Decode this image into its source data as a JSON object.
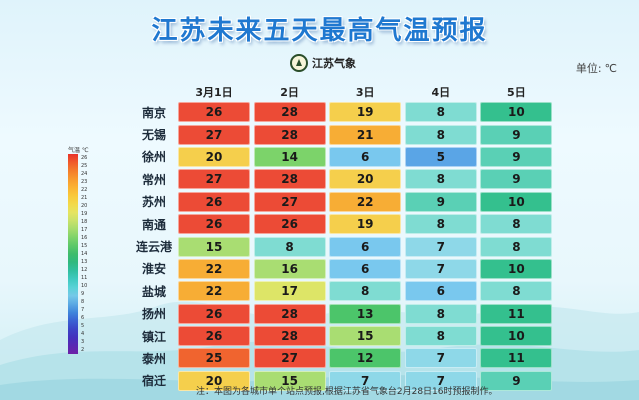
{
  "title": "江苏未来五天最高气温预报",
  "logo_text": "江苏气象",
  "unit_label": "单位:",
  "unit_symbol": "℃",
  "legend": {
    "header": "气温 ℃",
    "ticks": [
      "26",
      "25",
      "24",
      "23",
      "22",
      "21",
      "20",
      "19",
      "18",
      "17",
      "16",
      "15",
      "14",
      "13",
      "12",
      "11",
      "10",
      "9",
      "8",
      "7",
      "6",
      "5",
      "4",
      "3",
      "2"
    ],
    "colors": [
      "#e8322a",
      "#f05a2b",
      "#f47d2c",
      "#f89a2f",
      "#fbb233",
      "#f9c93a",
      "#f3d94a",
      "#e6e460",
      "#c9e26a",
      "#a6dc6c",
      "#7fd36a",
      "#5cc869",
      "#3ebc6c",
      "#2fb97f",
      "#30bfa0",
      "#3fc9c0",
      "#58d2d6",
      "#74c9e8",
      "#5aa9e4",
      "#3f86db",
      "#3a62d3",
      "#3b44c7",
      "#4331bd",
      "#5927b3",
      "#6d22a8"
    ]
  },
  "table": {
    "dates": [
      "3月1日",
      "2日",
      "3日",
      "4日",
      "5日"
    ],
    "rows": [
      {
        "city": "南京",
        "values": [
          26,
          28,
          19,
          8,
          10
        ]
      },
      {
        "city": "无锡",
        "values": [
          27,
          28,
          21,
          8,
          9
        ]
      },
      {
        "city": "徐州",
        "values": [
          20,
          14,
          6,
          5,
          9
        ]
      },
      {
        "city": "常州",
        "values": [
          27,
          28,
          20,
          8,
          9
        ]
      },
      {
        "city": "苏州",
        "values": [
          26,
          27,
          22,
          9,
          10
        ]
      },
      {
        "city": "南通",
        "values": [
          26,
          26,
          19,
          8,
          8
        ]
      },
      {
        "city": "连云港",
        "values": [
          15,
          8,
          6,
          7,
          8
        ]
      },
      {
        "city": "淮安",
        "values": [
          22,
          16,
          6,
          7,
          10
        ]
      },
      {
        "city": "盐城",
        "values": [
          22,
          17,
          8,
          6,
          8
        ]
      },
      {
        "city": "扬州",
        "values": [
          26,
          28,
          13,
          8,
          11
        ]
      },
      {
        "city": "镇江",
        "values": [
          26,
          28,
          15,
          8,
          10
        ]
      },
      {
        "city": "泰州",
        "values": [
          25,
          27,
          12,
          7,
          11
        ]
      },
      {
        "city": "宿迁",
        "values": [
          20,
          15,
          7,
          7,
          9
        ]
      }
    ]
  },
  "note": "注：本图为各城市单个站点预报,根据江苏省气象台2月28日16时预报制作。"
}
